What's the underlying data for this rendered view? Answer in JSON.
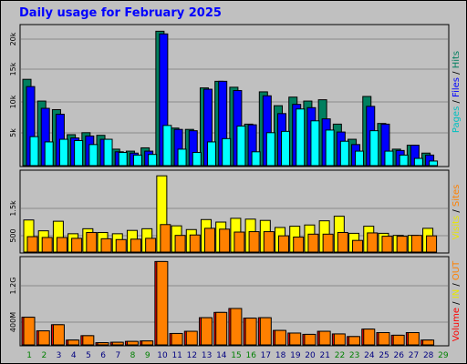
{
  "chart_data": [
    {
      "type": "bar",
      "title": "Daily usage for February 2025",
      "categories": [
        "1",
        "2",
        "3",
        "4",
        "5",
        "6",
        "7",
        "8",
        "9",
        "10",
        "11",
        "12",
        "13",
        "14",
        "15",
        "16",
        "17",
        "18",
        "19",
        "20",
        "21",
        "22",
        "23",
        "24",
        "25",
        "26",
        "27",
        "28",
        "29"
      ],
      "ylabels": [
        "20k",
        "15k",
        "10k",
        "5k"
      ],
      "legend": [
        "Pages",
        "/",
        "Files",
        "/",
        "Hits"
      ],
      "series": [
        {
          "name": "Hits",
          "color": "#007f5f",
          "values": [
            13100,
            9800,
            8500,
            4700,
            5000,
            4600,
            2500,
            2200,
            2700,
            20400,
            5700,
            5500,
            11800,
            12800,
            11900,
            6300,
            11200,
            9100,
            10400,
            9800,
            10000,
            6300,
            4000,
            10500,
            6400,
            2500,
            3100,
            1900,
            0
          ]
        },
        {
          "name": "Files",
          "color": "#0000ff",
          "values": [
            12000,
            8700,
            7800,
            4200,
            4500,
            4000,
            2100,
            1900,
            2200,
            20000,
            5500,
            5300,
            11600,
            12800,
            11400,
            6200,
            10600,
            7900,
            9300,
            8800,
            7100,
            5100,
            3200,
            9000,
            6300,
            2300,
            3100,
            1600,
            0
          ]
        },
        {
          "name": "Pages",
          "color": "#00ffff",
          "values": [
            4400,
            3600,
            4000,
            3800,
            3200,
            4000,
            2000,
            1600,
            1700,
            6100,
            2500,
            2000,
            3600,
            4100,
            6000,
            2100,
            5000,
            5200,
            8600,
            6800,
            5400,
            3700,
            2200,
            5300,
            2200,
            1600,
            1100,
            700,
            0
          ]
        }
      ]
    },
    {
      "type": "bar",
      "categories": [
        "1",
        "2",
        "3",
        "4",
        "5",
        "6",
        "7",
        "8",
        "9",
        "10",
        "11",
        "12",
        "13",
        "14",
        "15",
        "16",
        "17",
        "18",
        "19",
        "20",
        "21",
        "22",
        "23",
        "24",
        "25",
        "26",
        "27",
        "28",
        "29"
      ],
      "ylabels": [
        "1.5k",
        "500"
      ],
      "legend": [
        "Visits",
        "/",
        "Sites"
      ],
      "series": [
        {
          "name": "Visits",
          "color": "#ffff00",
          "values": [
            770,
            510,
            740,
            440,
            560,
            470,
            440,
            520,
            560,
            1830,
            630,
            540,
            780,
            720,
            810,
            790,
            760,
            590,
            620,
            650,
            750,
            860,
            450,
            620,
            450,
            400,
            400,
            570,
            0
          ]
        },
        {
          "name": "Sites",
          "color": "#ff8000",
          "values": [
            370,
            350,
            350,
            330,
            470,
            320,
            300,
            310,
            330,
            660,
            400,
            410,
            570,
            550,
            480,
            490,
            490,
            390,
            360,
            430,
            430,
            470,
            280,
            460,
            380,
            380,
            400,
            390,
            0
          ]
        }
      ]
    },
    {
      "type": "bar",
      "categories": [
        "1",
        "2",
        "3",
        "4",
        "5",
        "6",
        "7",
        "8",
        "9",
        "10",
        "11",
        "12",
        "13",
        "14",
        "15",
        "16",
        "17",
        "18",
        "19",
        "20",
        "21",
        "22",
        "23",
        "24",
        "25",
        "26",
        "27",
        "28",
        "29"
      ],
      "ylabels": [
        "1.2G",
        "400M"
      ],
      "legend": [
        "Volume",
        "/",
        "IN",
        "/",
        "OUT"
      ],
      "series": [
        {
          "name": "Volume",
          "color": "#ff0000",
          "values": [
            0.63,
            0.32,
            0.46,
            0.11,
            0.21,
            0.05,
            0.06,
            0.08,
            0.09,
            1.9,
            0.26,
            0.31,
            0.62,
            0.74,
            0.83,
            0.61,
            0.62,
            0.33,
            0.27,
            0.24,
            0.31,
            0.25,
            0.19,
            0.36,
            0.28,
            0.22,
            0.28,
            0.11,
            0
          ]
        },
        {
          "name": "OUT",
          "color": "#ff8000",
          "values": [
            0.63,
            0.32,
            0.46,
            0.11,
            0.21,
            0.05,
            0.06,
            0.08,
            0.09,
            1.9,
            0.26,
            0.31,
            0.62,
            0.74,
            0.83,
            0.61,
            0.62,
            0.33,
            0.27,
            0.24,
            0.31,
            0.25,
            0.19,
            0.36,
            0.28,
            0.22,
            0.28,
            0.11,
            0
          ]
        }
      ]
    }
  ],
  "weekend_days": [
    "1",
    "2",
    "8",
    "9",
    "15",
    "16",
    "22",
    "23",
    "29"
  ],
  "legend_colors": {
    "pages": "#00c0c0",
    "files": "#0000ff",
    "hits": "#007f5f",
    "visits": "#e8e800",
    "sites": "#ff8000",
    "volume": "#ff0000",
    "in": "#e8e800",
    "out": "#ff8000",
    "separator": "#000000"
  },
  "axis_colors": {
    "weekday": "#000080",
    "weekend": "#008000"
  }
}
